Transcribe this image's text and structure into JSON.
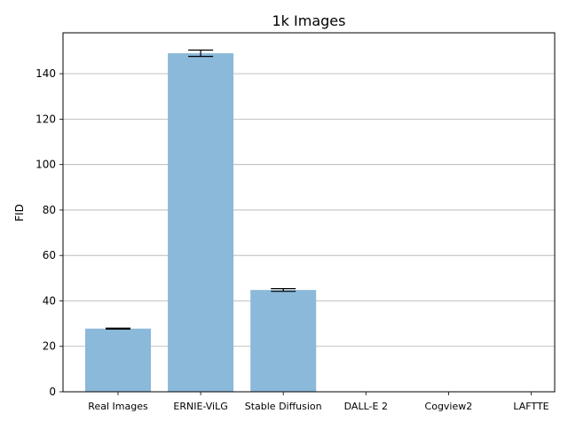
{
  "chart_data": {
    "type": "bar",
    "title": "1k Images",
    "xlabel": "",
    "ylabel": "FID",
    "categories": [
      "Real Images",
      "ERNIE-ViLG",
      "Stable Diffusion",
      "DALL-E 2",
      "Cogview2",
      "LAFTTE"
    ],
    "values": [
      27.8,
      149.0,
      44.8,
      0,
      0,
      0
    ],
    "errors": [
      0.2,
      1.4,
      0.6,
      0,
      0,
      0
    ],
    "ylim": [
      0,
      158
    ],
    "yticks": [
      0,
      20,
      40,
      60,
      80,
      100,
      120,
      140
    ],
    "grid": "y",
    "bar_color": "#8bb9da",
    "grid_color": "#b0b0b0"
  }
}
